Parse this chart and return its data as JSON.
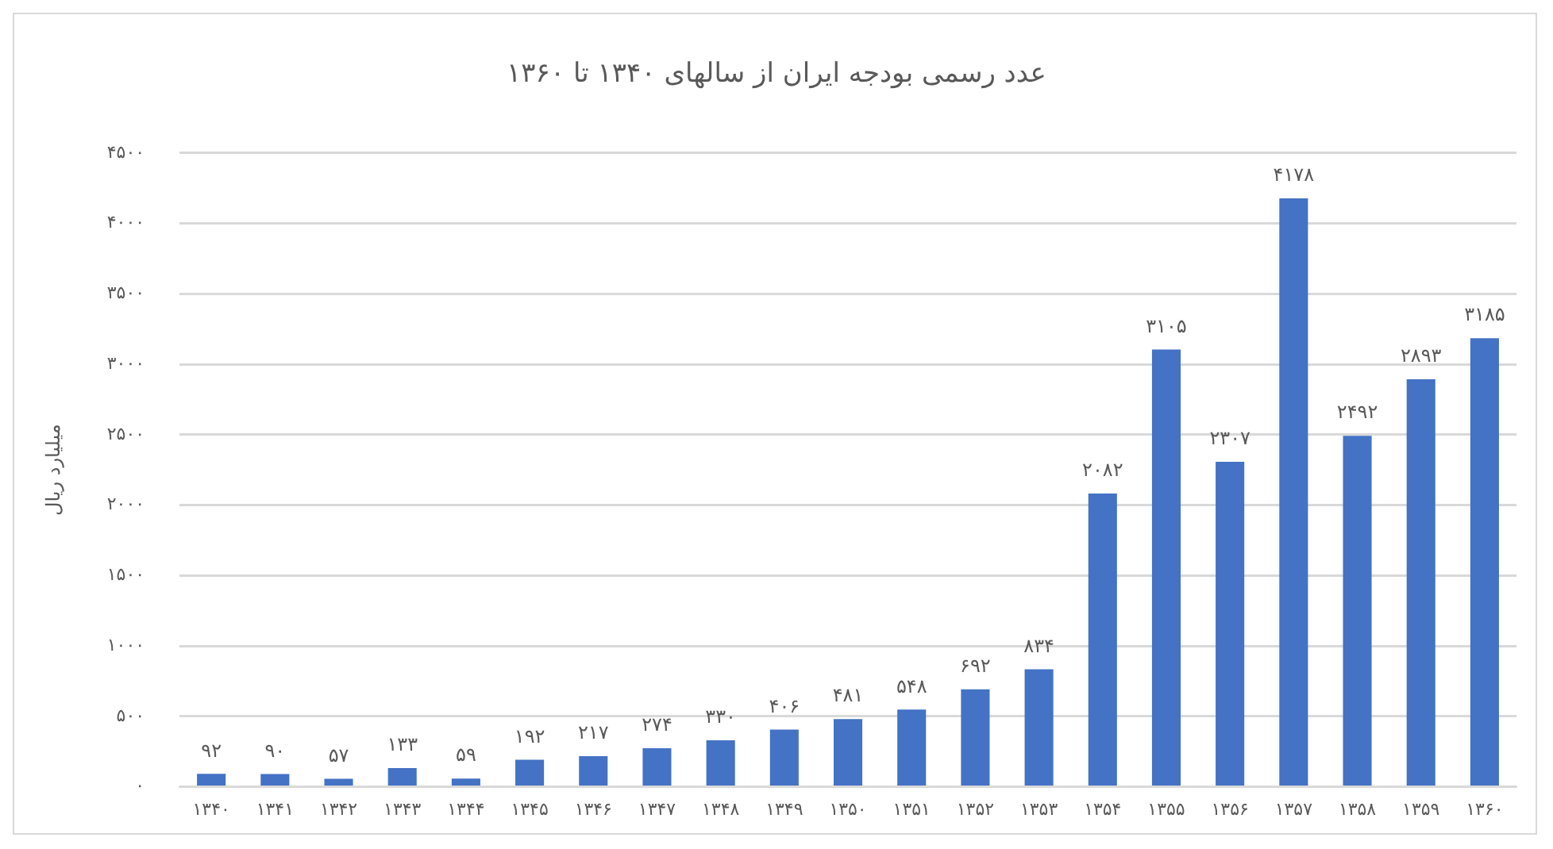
{
  "chart_data": {
    "type": "bar",
    "title": "عدد رسمی بودجه ایران از سالهای ۱۳۴۰ تا ۱۳۶۰",
    "ylabel": "میلیارد ریال",
    "categories": [
      "۱۳۴۰",
      "۱۳۴۱",
      "۱۳۴۲",
      "۱۳۴۳",
      "۱۳۴۴",
      "۱۳۴۵",
      "۱۳۴۶",
      "۱۳۴۷",
      "۱۳۴۸",
      "۱۳۴۹",
      "۱۳۵۰",
      "۱۳۵۱",
      "۱۳۵۲",
      "۱۳۵۳",
      "۱۳۵۴",
      "۱۳۵۵",
      "۱۳۵۶",
      "۱۳۵۷",
      "۱۳۵۸",
      "۱۳۵۹",
      "۱۳۶۰"
    ],
    "values": [
      92,
      90,
      57,
      133,
      59,
      192,
      217,
      274,
      330,
      406,
      481,
      548,
      692,
      834,
      2082,
      3105,
      2307,
      4178,
      2492,
      2893,
      3185
    ],
    "value_labels": [
      "۹۲",
      "۹۰",
      "۵۷",
      "۱۳۳",
      "۵۹",
      "۱۹۲",
      "۲۱۷",
      "۲۷۴",
      "۳۳۰",
      "۴۰۶",
      "۴۸۱",
      "۵۴۸",
      "۶۹۲",
      "۸۳۴",
      "۲۰۸۲",
      "۳۱۰۵",
      "۲۳۰۷",
      "۴۱۷۸",
      "۲۴۹۲",
      "۲۸۹۳",
      "۳۱۸۵"
    ],
    "color": "#4472c4",
    "ylim": [
      0,
      4500
    ],
    "yticks": [
      {
        "value": 0,
        "label": "۰"
      },
      {
        "value": 500,
        "label": "۵۰۰"
      },
      {
        "value": 1000,
        "label": "۱۰۰۰"
      },
      {
        "value": 1500,
        "label": "۱۵۰۰"
      },
      {
        "value": 2000,
        "label": "۲۰۰۰"
      },
      {
        "value": 2500,
        "label": "۲۵۰۰"
      },
      {
        "value": 3000,
        "label": "۳۰۰۰"
      },
      {
        "value": 3500,
        "label": "۳۵۰۰"
      },
      {
        "value": 4000,
        "label": "۴۰۰۰"
      },
      {
        "value": 4500,
        "label": "۴۵۰۰"
      }
    ],
    "grid": "y"
  }
}
